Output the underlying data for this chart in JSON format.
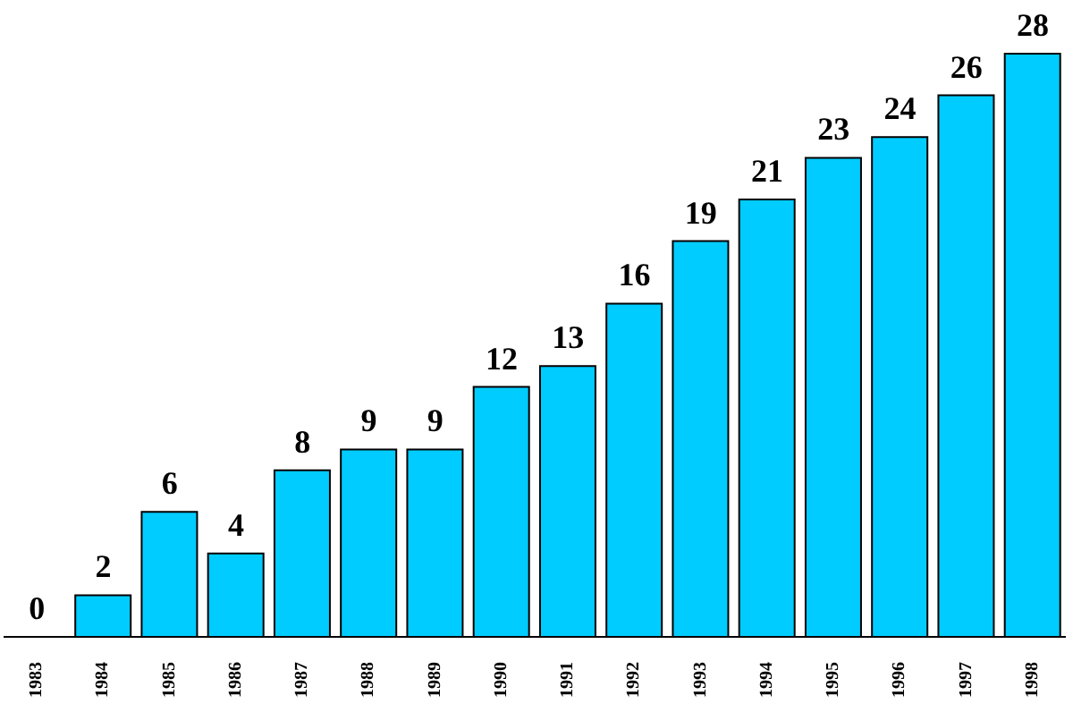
{
  "chart_data": {
    "type": "bar",
    "categories": [
      "1983",
      "1984",
      "1985",
      "1986",
      "1987",
      "1988",
      "1989",
      "1990",
      "1991",
      "1992",
      "1993",
      "1994",
      "1995",
      "1996",
      "1997",
      "1998"
    ],
    "values": [
      0,
      2,
      6,
      4,
      8,
      9,
      9,
      12,
      13,
      16,
      19,
      21,
      23,
      24,
      26,
      28
    ],
    "color": "#00ccff",
    "data_labels": true,
    "grid": false,
    "legend": false
  }
}
